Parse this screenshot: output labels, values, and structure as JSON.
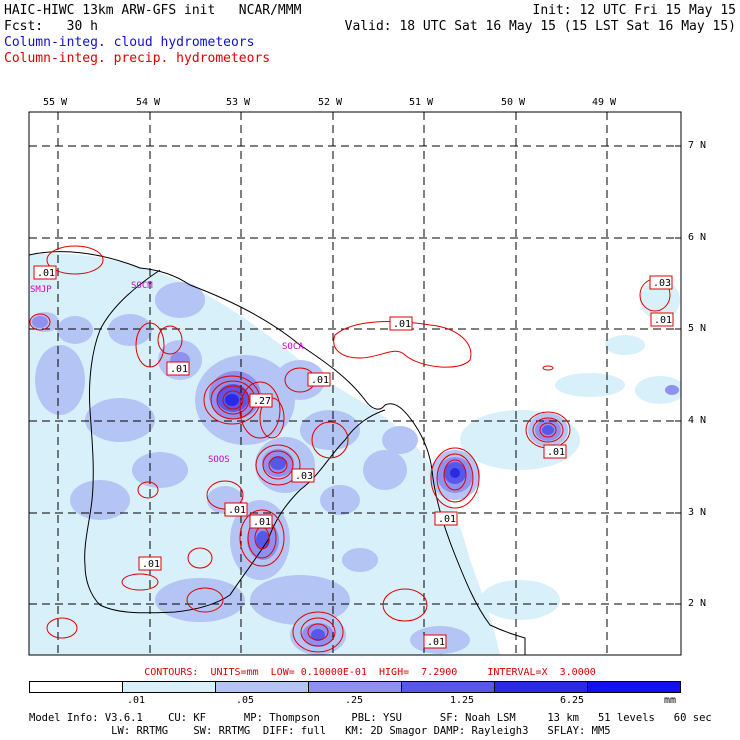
{
  "header": {
    "title_left": "HAIC-HIWC 13km ARW-GFS init   NCAR/MMM",
    "forecast": "Fcst:   30 h",
    "init": "Init: 12 UTC Fri 15 May 15",
    "valid": "Valid: 18 UTC Sat 16 May 15 (15 LST Sat 16 May 15)",
    "legend_cloud": "Column-integ. cloud hydrometeors",
    "legend_precip": "Column-integ. precip. hydrometeors"
  },
  "axes": {
    "lon_labels": [
      "55 W",
      "54 W",
      "53 W",
      "52 W",
      "51 W",
      "50 W",
      "49 W"
    ],
    "lat_labels": [
      "7 N",
      "6 N",
      "5 N",
      "4 N",
      "3 N",
      "2 N"
    ]
  },
  "map_text": {
    "station_labels": [
      "SMJP",
      "SOCA",
      "SOOS",
      "SOCM"
    ],
    "contour_labels": [
      ".01",
      ".01",
      ".01",
      ".27",
      ".01",
      ".03",
      ".01",
      ".01",
      ".01",
      ".01",
      ".01",
      ".03",
      ".01",
      ".01"
    ]
  },
  "contours_info": "CONTOURS:  UNITS=mm  LOW= 0.10000E-01  HIGH=  7.2900     INTERVAL=X  3.0000",
  "colorbar": {
    "tick_labels": [
      ".01",
      ".05",
      ".25",
      "1.25",
      "6.25"
    ],
    "units": "mm",
    "colors": [
      "#ffffff",
      "#d8f0fa",
      "#b4c4f4",
      "#9090ee",
      "#5858e8",
      "#2a2ae6",
      "#1010f0"
    ]
  },
  "model_info": {
    "line1": "Model Info: V3.6.1    CU: KF      MP: Thompson     PBL: YSU      SF: Noah LSM     13 km   51 levels   60 sec",
    "line2": "             LW: RRTMG    SW: RRTMG  DIFF: full   KM: 2D Smagor DAMP: Rayleigh3   SFLAY: MM5"
  }
}
